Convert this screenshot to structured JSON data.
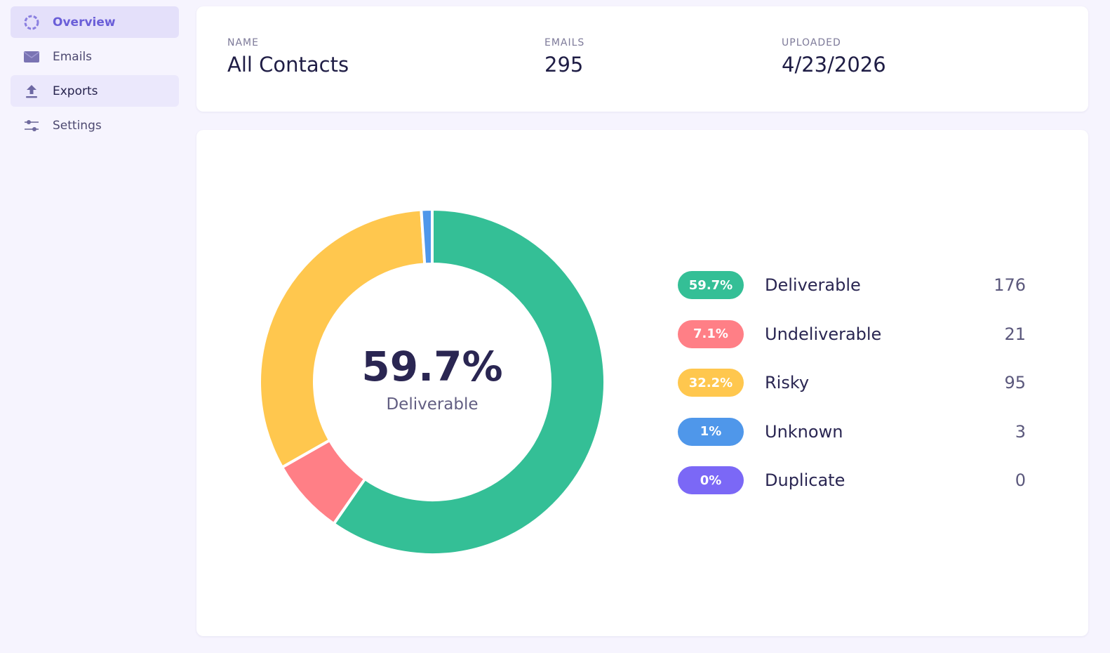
{
  "sidebar": {
    "items": [
      {
        "label": "Overview",
        "icon": "overview-icon",
        "state": "active"
      },
      {
        "label": "Emails",
        "icon": "envelope-icon",
        "state": ""
      },
      {
        "label": "Exports",
        "icon": "upload-icon",
        "state": "hover"
      },
      {
        "label": "Settings",
        "icon": "sliders-icon",
        "state": ""
      }
    ]
  },
  "summary": {
    "name_label": "NAME",
    "name_value": "All Contacts",
    "emails_label": "EMAILS",
    "emails_value": "295",
    "uploaded_label": "UPLOADED",
    "uploaded_value": "4/23/2026"
  },
  "donut_center": {
    "value": "59.7%",
    "label": "Deliverable"
  },
  "chart_data": {
    "type": "pie",
    "categories": [
      "Deliverable",
      "Undeliverable",
      "Risky",
      "Unknown",
      "Duplicate"
    ],
    "values": [
      176,
      21,
      95,
      3,
      0
    ],
    "percent_labels": [
      "59.7%",
      "7.1%",
      "32.2%",
      "1%",
      "0%"
    ],
    "count_labels": [
      "176",
      "21",
      "95",
      "3",
      "0"
    ],
    "colors": [
      "#34bf96",
      "#ff7f86",
      "#ffc74e",
      "#4f97ea",
      "#7b68f6"
    ],
    "donut": true,
    "legend": "right"
  }
}
